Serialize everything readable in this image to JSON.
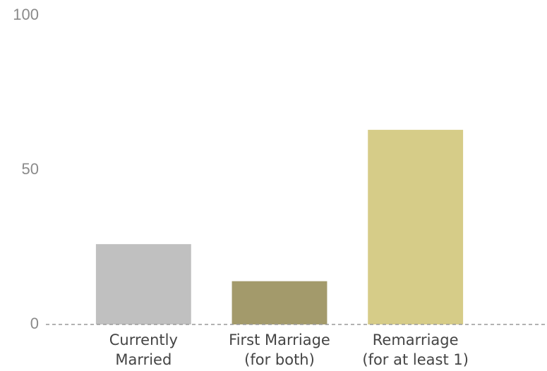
{
  "chart_data": {
    "type": "bar",
    "categories": [
      "Currently\nMarried",
      "First Marriage\n(for both)",
      "Remarriage\n(for at least 1)"
    ],
    "values": [
      26,
      14,
      63
    ],
    "colors": [
      "#c0c0c0",
      "#a39a6b",
      "#d6cc88"
    ],
    "ylim": [
      0,
      100
    ],
    "yticks": [
      0,
      50,
      100
    ],
    "grid": false
  }
}
